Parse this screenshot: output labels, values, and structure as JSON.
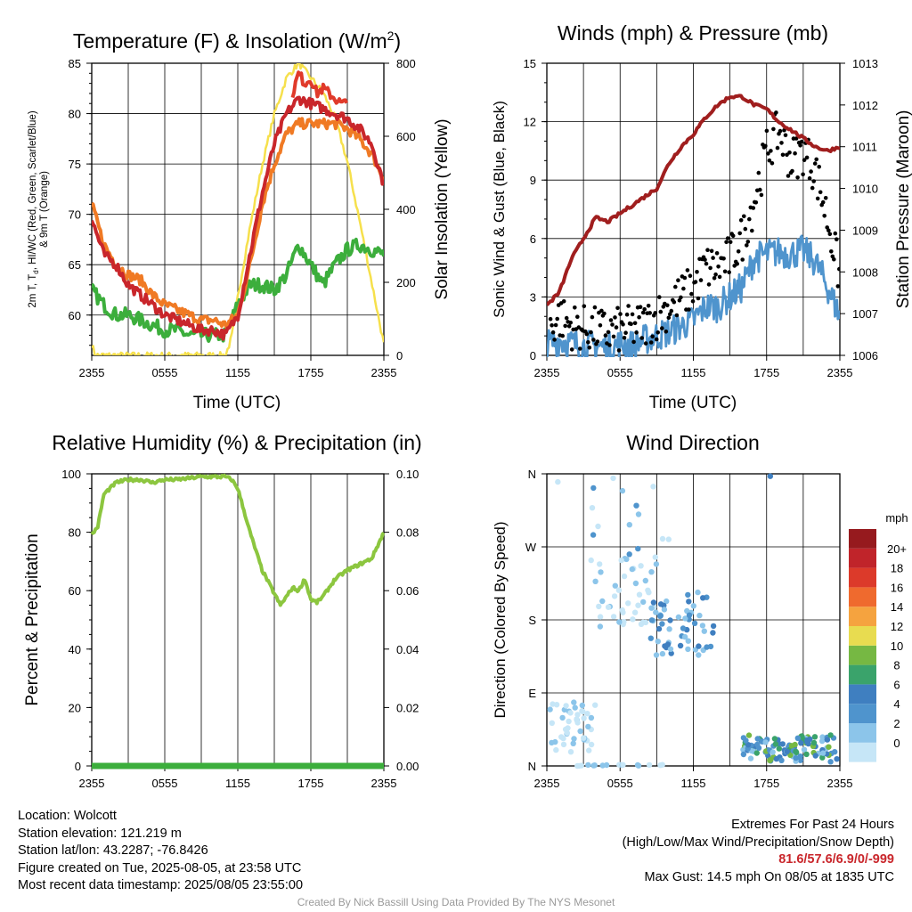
{
  "chart_data": [
    {
      "type": "line",
      "title": "Temperature (F) & Insolation (W/m²)",
      "xlabel": "Time (UTC)",
      "ylabel": "2m T, Td, HI/WC (Red, Green, Scarlet/Blue) & 9m T (Orange)",
      "ylabel_line1": "2m T, T",
      "ylabel_sub": "d",
      "ylabel_line1b": ", HI/WC (Red, Green, Scarlet/Blue)",
      "ylabel_line2": "& 9m T (Orange)",
      "y2label": "Solar Insolation (Yellow)",
      "x_ticks": [
        "2355",
        "0555",
        "1155",
        "1755",
        "2355"
      ],
      "y_ticks": [
        60,
        65,
        70,
        75,
        80,
        85
      ],
      "y2_ticks": [
        0,
        200,
        400,
        600,
        800
      ],
      "ylim": [
        56,
        85
      ],
      "y2lim": [
        0,
        800
      ],
      "xlim": [
        0,
        24
      ],
      "grid": true,
      "series": [
        {
          "color": "#c9262b",
          "axis": "y",
          "x": [
            0,
            1,
            2,
            3,
            4,
            5,
            6,
            7,
            8,
            9,
            10,
            11,
            12,
            13,
            14,
            15,
            16,
            17,
            18,
            19,
            20,
            21,
            22,
            23,
            24
          ],
          "values": [
            69.5,
            66,
            65,
            63,
            62,
            61,
            60,
            59.5,
            59,
            58.5,
            58.5,
            58,
            60,
            66,
            72,
            77,
            80,
            81.5,
            81,
            80.5,
            80,
            79.5,
            78.5,
            77,
            73
          ]
        },
        {
          "color": "#e03a2a",
          "axis": "y",
          "x": [
            16.5,
            17,
            17.5,
            18,
            18.5,
            19,
            19.5,
            20,
            20.5,
            21
          ],
          "values": [
            82,
            84,
            83,
            83.5,
            82,
            82.5,
            82,
            81.5,
            81,
            81
          ]
        },
        {
          "color": "#f07a24",
          "axis": "y",
          "x": [
            0,
            1,
            2,
            3,
            4,
            5,
            6,
            7,
            8,
            9,
            10,
            11,
            12,
            13,
            14,
            15,
            16,
            17,
            18,
            19,
            20,
            21,
            22,
            23,
            24
          ],
          "values": [
            71,
            67,
            65,
            64,
            63.5,
            62,
            61,
            60.5,
            60,
            59.5,
            59.5,
            59,
            60,
            65,
            71,
            75,
            78,
            79,
            79,
            79,
            79,
            78.5,
            77.5,
            76,
            73.5
          ]
        },
        {
          "color": "#3cae3c",
          "axis": "y",
          "x": [
            0,
            1,
            2,
            3,
            4,
            5,
            6,
            7,
            8,
            9,
            10,
            11,
            12,
            13,
            14,
            15,
            16,
            17,
            18,
            19,
            20,
            21,
            22,
            23,
            24
          ],
          "values": [
            62.5,
            61,
            60,
            60,
            59.5,
            59,
            58.5,
            58.5,
            58,
            58,
            58,
            58,
            61,
            63,
            63,
            62.5,
            64,
            67,
            65,
            63,
            65,
            66.5,
            67,
            66.5,
            66
          ]
        },
        {
          "color": "#f6e04c",
          "axis": "y2",
          "x": [
            0,
            0.3,
            11,
            11.5,
            12,
            13,
            14,
            15,
            16,
            17,
            18,
            19,
            20,
            21,
            22,
            23,
            24
          ],
          "values": [
            30,
            0,
            0,
            50,
            160,
            350,
            520,
            660,
            760,
            800,
            760,
            720,
            650,
            530,
            370,
            200,
            30
          ]
        }
      ]
    },
    {
      "type": "line",
      "title": "Winds (mph) & Pressure (mb)",
      "xlabel": "Time (UTC)",
      "ylabel": "Sonic Wind & Gust (Blue, Black)",
      "y2label": "Station Pressure (Maroon)",
      "x_ticks": [
        "2355",
        "0555",
        "1155",
        "1755",
        "2355"
      ],
      "y_ticks": [
        0,
        3,
        6,
        9,
        12,
        15
      ],
      "y2_ticks": [
        1006,
        1007,
        1008,
        1009,
        1010,
        1011,
        1012,
        1013
      ],
      "ylim": [
        0,
        15
      ],
      "y2lim": [
        1006,
        1013
      ],
      "xlim": [
        0,
        24
      ],
      "grid": true,
      "series": [
        {
          "color": "#4f94cd",
          "type": "line",
          "axis": "y",
          "x": [
            0,
            1,
            2,
            3,
            4,
            5,
            6,
            7,
            8,
            9,
            10,
            11,
            12,
            13,
            14,
            15,
            16,
            17,
            18,
            19,
            20,
            21,
            22,
            23,
            24
          ],
          "values": [
            0.5,
            0.8,
            0.6,
            0.5,
            0.5,
            0.4,
            0.6,
            0.5,
            0.8,
            1,
            1.2,
            1.5,
            1.8,
            2.5,
            2.5,
            3,
            3.5,
            5,
            5.2,
            5.3,
            5.2,
            5.4,
            4.8,
            3.5,
            2
          ]
        },
        {
          "color": "#000000",
          "type": "scatter",
          "axis": "y",
          "x": [
            0,
            1,
            2,
            3,
            4,
            5,
            6,
            7,
            8,
            9,
            10,
            11,
            12,
            13,
            14,
            15,
            16,
            17,
            18,
            19,
            20,
            21,
            22,
            23,
            24
          ],
          "values": [
            1.2,
            2,
            1.5,
            1.4,
            1.3,
            1.2,
            1.3,
            1.4,
            1.6,
            2,
            2.5,
            3,
            3.5,
            4.5,
            4.5,
            5,
            6,
            8,
            10.5,
            11.5,
            10,
            10.5,
            9.5,
            7,
            4
          ]
        },
        {
          "color": "#a01e1e",
          "type": "line",
          "axis": "y2",
          "x": [
            0,
            1,
            2,
            3,
            4,
            5,
            6,
            7,
            8,
            9,
            10,
            11,
            12,
            13,
            14,
            15,
            16,
            17,
            18,
            19,
            20,
            21,
            22,
            23,
            24
          ],
          "values": [
            1007.2,
            1007.5,
            1008.3,
            1008.8,
            1009.3,
            1009.2,
            1009.4,
            1009.6,
            1009.8,
            1010,
            1010.6,
            1011,
            1011.3,
            1011.7,
            1012,
            1012.2,
            1012.2,
            1012,
            1011.9,
            1011.6,
            1011.4,
            1011.2,
            1011,
            1010.9,
            1011
          ]
        }
      ]
    },
    {
      "type": "line",
      "title": "Relative Humidity (%) & Precipitation (in)",
      "ylabel": "Percent & Precipitation",
      "x_ticks": [
        "2355",
        "0555",
        "1155",
        "1755",
        "2355"
      ],
      "y_ticks": [
        0,
        20,
        40,
        60,
        80,
        100
      ],
      "y2_ticks": [
        "0.00",
        "0.02",
        "0.04",
        "0.06",
        "0.08",
        "0.10"
      ],
      "ylim": [
        0,
        100
      ],
      "y2lim": [
        0,
        0.1
      ],
      "xlim": [
        0,
        24
      ],
      "grid": true,
      "series": [
        {
          "color": "#8cc63f",
          "axis": "y",
          "x": [
            0,
            0.5,
            1,
            2,
            3,
            4,
            5,
            6,
            7,
            8,
            9,
            10,
            11,
            11.5,
            12,
            13,
            14,
            15,
            15.5,
            16,
            16.5,
            17,
            17.5,
            18,
            18.5,
            19,
            20,
            21,
            22,
            23,
            24
          ],
          "values": [
            79,
            82,
            93,
            97,
            98,
            98,
            97,
            98,
            98,
            98.5,
            99,
            99,
            99,
            98,
            95,
            80,
            67,
            59,
            55,
            58,
            61,
            60,
            64,
            57,
            56,
            58,
            64,
            67,
            69,
            71,
            80
          ]
        },
        {
          "color": "#3cae3c",
          "axis": "y2",
          "x": [
            0,
            24
          ],
          "values": [
            0,
            0
          ]
        }
      ]
    },
    {
      "type": "scatter",
      "title": "Wind Direction",
      "ylabel": "Direction (Colored By Speed)",
      "x_ticks": [
        "2355",
        "0555",
        "1155",
        "1755",
        "2355"
      ],
      "y_ticks": [
        "N",
        "E",
        "S",
        "W",
        "N"
      ],
      "ylim": [
        0,
        360
      ],
      "xlim": [
        0,
        24
      ],
      "grid": true,
      "legend": {
        "title": "mph",
        "labels": [
          "0",
          "2",
          "4",
          "6",
          "8",
          "10",
          "12",
          "14",
          "16",
          "18",
          "20+"
        ],
        "colors": [
          "#c6e6f7",
          "#8cc5ea",
          "#4f94cd",
          "#3f7fc0",
          "#3aa36b",
          "#76b843",
          "#e8dc50",
          "#f5a33f",
          "#ef6a2e",
          "#dc3a2a",
          "#c0242a",
          "#961a1e"
        ],
        "placement": "right"
      }
    }
  ],
  "footer": {
    "location": "Location: Wolcott",
    "elevation": "Station elevation: 121.219 m",
    "latlon": "Station lat/lon: 43.2287; -76.8426",
    "created": "Figure created on Tue, 2025-08-05, at 23:58 UTC",
    "recent": "Most recent data timestamp: 2025/08/05 23:55:00",
    "extremes_title": "Extremes For Past 24 Hours",
    "extremes_desc": "(High/Low/Max Wind/Precipitation/Snow Depth)",
    "extremes_values": "81.6/57.6/6.9/0/-999",
    "max_gust": "Max Gust: 14.5 mph On 08/05 at 1835 UTC",
    "credit": "Created By Nick Bassill Using Data Provided By The NYS Mesonet"
  }
}
